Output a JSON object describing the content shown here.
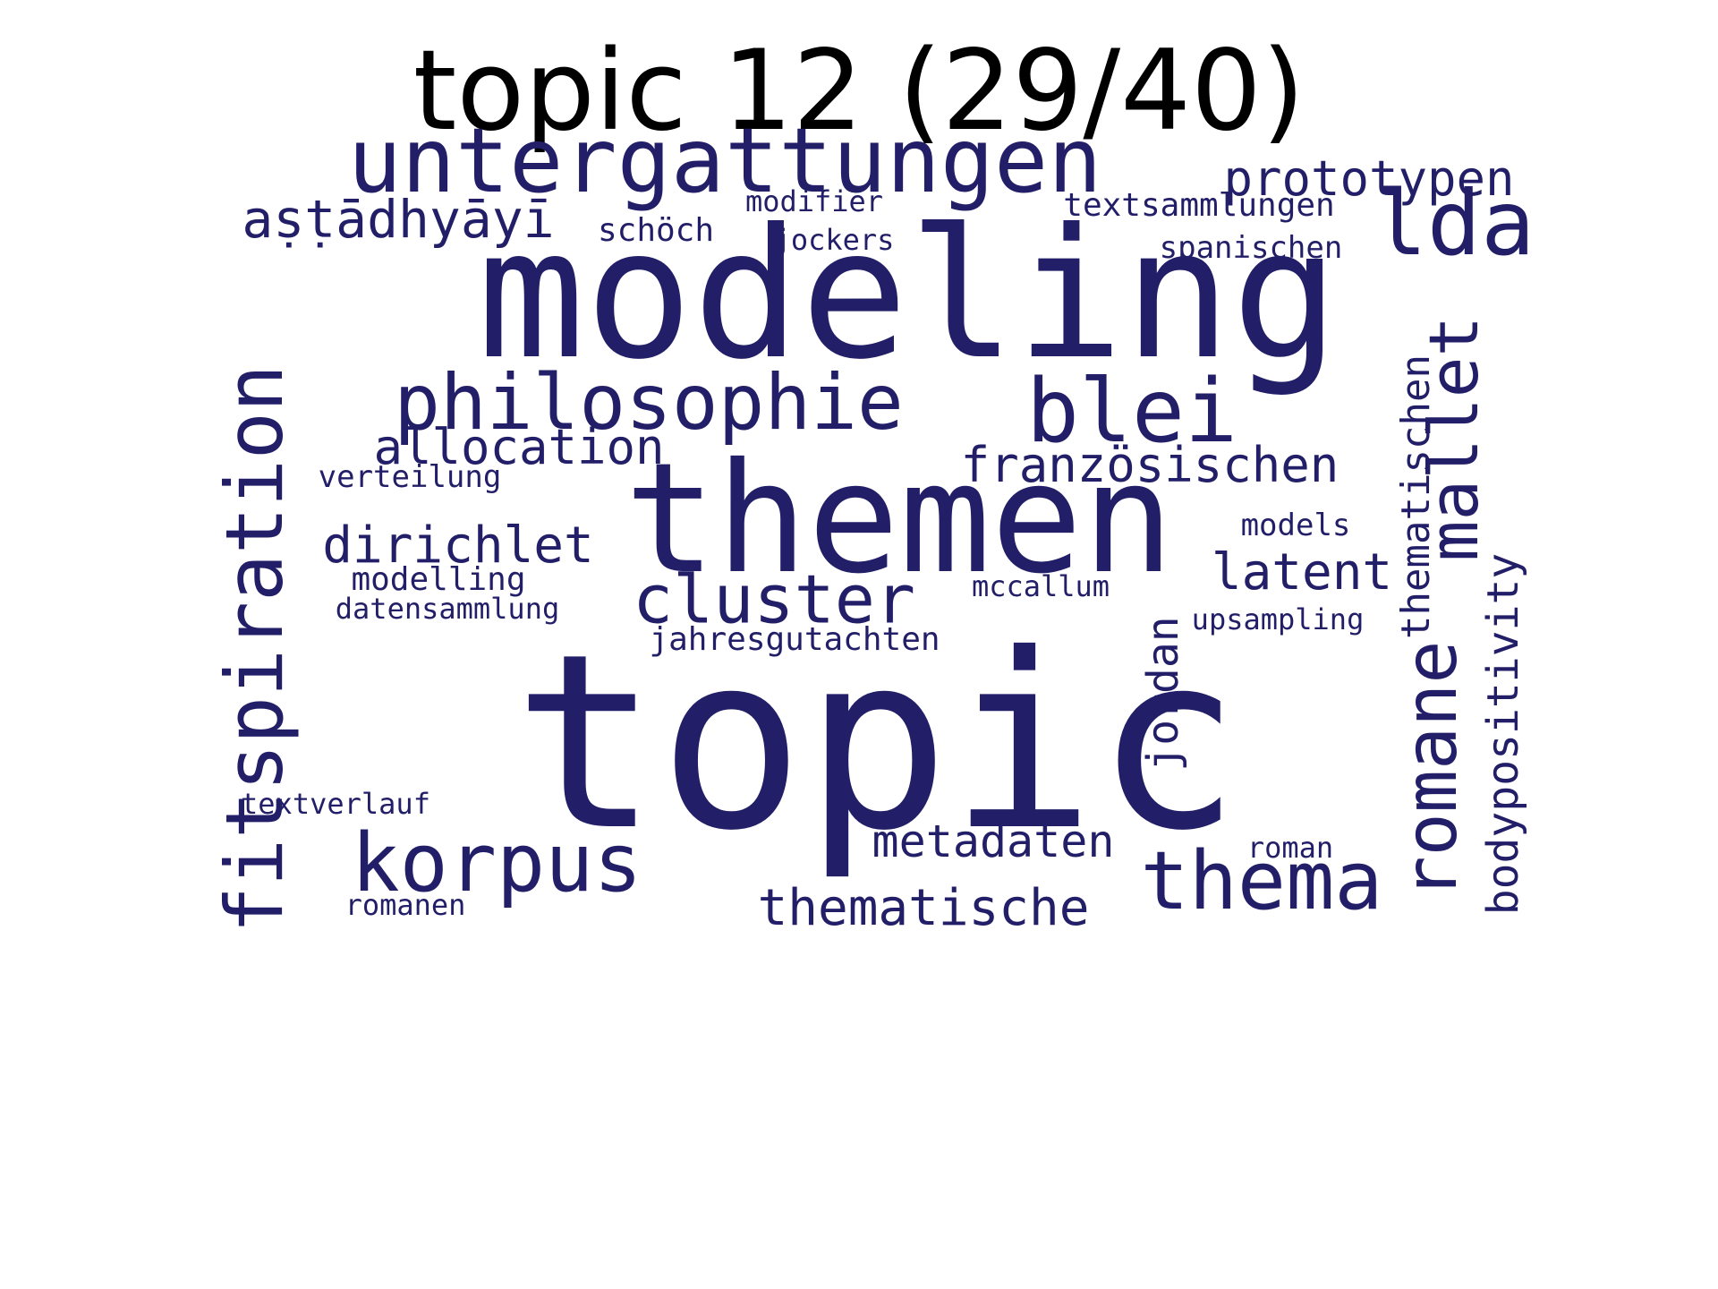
{
  "title": "topic 12 (29/40)",
  "colors": {
    "background": "#ffffff",
    "title": "#000000",
    "words": "#221E68"
  },
  "words": [
    "topic",
    "modeling",
    "themen",
    "untergattungen",
    "philosophie",
    "blei",
    "lda",
    "fitspiration",
    "mallet",
    "korpus",
    "thema",
    "romane",
    "cluster",
    "bodypositivity",
    "aṣṭādhyāyī",
    "prototypen",
    "allocation",
    "französischen",
    "dirichlet",
    "latent",
    "thematische",
    "thematischen",
    "metadaten",
    "jordan",
    "jahresgutachten",
    "textsammlungen",
    "modifier",
    "schöch",
    "jockers",
    "spanischen",
    "verteilung",
    "models",
    "modelling",
    "mccallum",
    "datensammlung",
    "upsampling",
    "textverlauf",
    "roman",
    "romanen"
  ]
}
